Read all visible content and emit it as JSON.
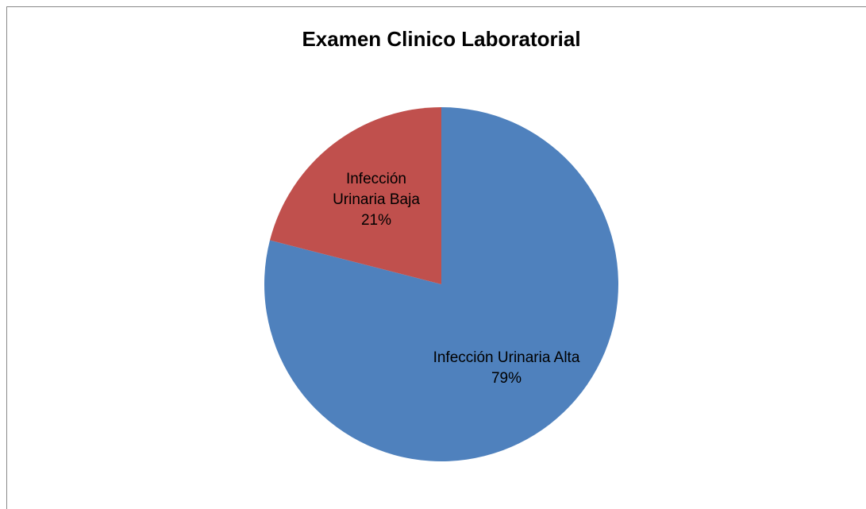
{
  "chart_data": {
    "type": "pie",
    "title": "Examen Clinico Laboratorial",
    "categories": [
      "Infección Urinaria Alta",
      "Infección Urinaria Baja"
    ],
    "values": [
      79,
      21
    ],
    "value_labels": [
      "79%",
      "21%"
    ],
    "colors": [
      "#4f81bd",
      "#c0504d"
    ]
  }
}
